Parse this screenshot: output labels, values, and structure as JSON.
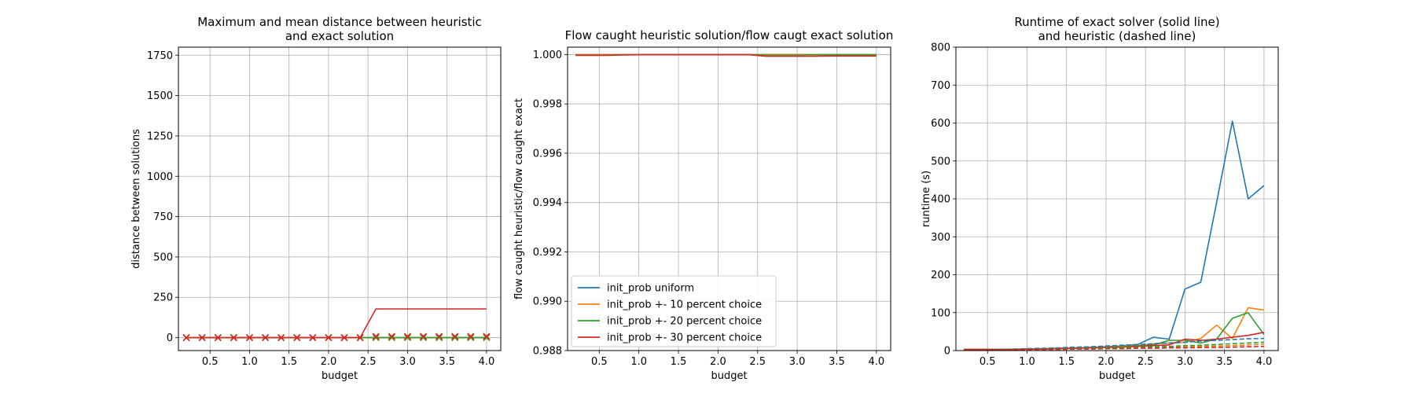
{
  "colors": {
    "uniform": "#1f77b4",
    "p10": "#ff7f0e",
    "p20": "#2ca02c",
    "p30": "#d62728",
    "grid": "#b0b0b0"
  },
  "legend_entries": [
    "init_prob uniform",
    "init_prob +- 10 percent choice",
    "init_prob +- 20 percent choice",
    "init_prob +- 30 percent choice"
  ],
  "chart_data": [
    {
      "type": "line",
      "title": "Maximum and mean distance between heuristic\nand exact solution",
      "xlabel": "budget",
      "ylabel": "distance between solutions",
      "xlim": [
        0.1,
        4.18
      ],
      "ylim": [
        -80,
        1800
      ],
      "xticks": [
        0.5,
        1.0,
        1.5,
        2.0,
        2.5,
        3.0,
        3.5,
        4.0
      ],
      "xtick_labels": [
        "0.5",
        "1.0",
        "1.5",
        "2.0",
        "2.5",
        "3.0",
        "3.5",
        "4.0"
      ],
      "yticks": [
        0,
        250,
        500,
        750,
        1000,
        1250,
        1500,
        1750
      ],
      "ytick_labels": [
        "0",
        "250",
        "500",
        "750",
        "1000",
        "1250",
        "1500",
        "1750"
      ],
      "grid": true,
      "x": [
        0.2,
        0.4,
        0.6,
        0.8,
        1.0,
        1.2,
        1.4,
        1.6,
        1.8,
        2.0,
        2.2,
        2.4,
        2.6,
        2.8,
        3.0,
        3.2,
        3.4,
        3.6,
        3.8,
        4.0
      ],
      "series": [
        {
          "key": "uniform",
          "kind": "line",
          "values": [
            0,
            0,
            0,
            0,
            0,
            0,
            0,
            0,
            0,
            0,
            0,
            0,
            0,
            0,
            0,
            0,
            0,
            0,
            0,
            0
          ]
        },
        {
          "key": "uniform",
          "kind": "x",
          "values": [
            0,
            0,
            0,
            0,
            0,
            0,
            0,
            0,
            0,
            0,
            0,
            0,
            0,
            0,
            0,
            0,
            0,
            0,
            0,
            0
          ]
        },
        {
          "key": "p10",
          "kind": "line",
          "values": [
            0,
            0,
            0,
            0,
            0,
            0,
            0,
            0,
            0,
            0,
            0,
            0,
            0,
            0,
            0,
            0,
            0,
            0,
            0,
            0
          ]
        },
        {
          "key": "p10",
          "kind": "x",
          "values": [
            0,
            0,
            0,
            0,
            0,
            0,
            0,
            0,
            0,
            0,
            0,
            0,
            0,
            0,
            0,
            0,
            0,
            0,
            0,
            0
          ]
        },
        {
          "key": "p20",
          "kind": "line",
          "values": [
            0,
            0,
            0,
            0,
            0,
            0,
            0,
            0,
            0,
            0,
            0,
            0,
            0,
            0,
            0,
            0,
            0,
            0,
            0,
            0
          ]
        },
        {
          "key": "p20",
          "kind": "x",
          "values": [
            0,
            0,
            0,
            0,
            0,
            0,
            0,
            0,
            0,
            0,
            0,
            0,
            2,
            2,
            2,
            2,
            2,
            2,
            2,
            2
          ]
        },
        {
          "key": "p30",
          "kind": "line",
          "values": [
            0,
            0,
            0,
            0,
            0,
            0,
            0,
            0,
            0,
            0,
            0,
            0,
            178,
            178,
            178,
            178,
            178,
            178,
            178,
            178
          ]
        },
        {
          "key": "p30",
          "kind": "x",
          "values": [
            0,
            0,
            0,
            0,
            0,
            0,
            0,
            0,
            0,
            0,
            0,
            0,
            8,
            8,
            8,
            8,
            8,
            8,
            8,
            8
          ]
        }
      ]
    },
    {
      "type": "line",
      "title": "Flow caught heuristic solution/flow caugt exact solution",
      "xlabel": "budget",
      "ylabel": "flow caught heuristic/flow caught exact",
      "xlim": [
        0.1,
        4.18
      ],
      "ylim": [
        0.988,
        1.0003
      ],
      "xticks": [
        0.5,
        1.0,
        1.5,
        2.0,
        2.5,
        3.0,
        3.5,
        4.0
      ],
      "xtick_labels": [
        "0.5",
        "1.0",
        "1.5",
        "2.0",
        "2.5",
        "3.0",
        "3.5",
        "4.0"
      ],
      "yticks": [
        0.988,
        0.99,
        0.992,
        0.994,
        0.996,
        0.998,
        1.0
      ],
      "ytick_labels": [
        "0.988",
        "0.990",
        "0.992",
        "0.994",
        "0.996",
        "0.998",
        "1.000"
      ],
      "grid": true,
      "legend_position": "lower-left",
      "x": [
        0.2,
        0.4,
        0.6,
        0.8,
        1.0,
        1.2,
        1.4,
        1.6,
        1.8,
        2.0,
        2.2,
        2.4,
        2.6,
        2.8,
        3.0,
        3.2,
        3.4,
        3.6,
        3.8,
        4.0
      ],
      "series": [
        {
          "key": "uniform",
          "kind": "line",
          "values": [
            1,
            1,
            1,
            1,
            1,
            1,
            1,
            1,
            1,
            1,
            1,
            1,
            1,
            1,
            1,
            1,
            1,
            1,
            1,
            1
          ]
        },
        {
          "key": "p10",
          "kind": "line",
          "values": [
            1,
            1,
            1,
            1,
            1,
            1,
            1,
            1,
            1,
            1,
            1,
            1,
            1,
            1,
            1,
            1,
            1,
            1,
            1,
            1
          ]
        },
        {
          "key": "p20",
          "kind": "line",
          "values": [
            0.99998,
            0.99998,
            0.99998,
            0.99999,
            1,
            1,
            1,
            1,
            1,
            1,
            1,
            1,
            0.99998,
            0.99998,
            0.99998,
            0.99999,
            0.99999,
            0.99999,
            0.99999,
            0.99999
          ]
        },
        {
          "key": "p30",
          "kind": "line",
          "values": [
            0.99997,
            0.99997,
            0.99997,
            0.99998,
            0.99999,
            0.99999,
            0.99999,
            0.99999,
            0.99999,
            0.99999,
            0.99999,
            0.99999,
            0.99993,
            0.99993,
            0.99993,
            0.99993,
            0.99994,
            0.99994,
            0.99994,
            0.99994
          ]
        }
      ]
    },
    {
      "type": "line",
      "title": "Runtime of exact solver (solid line)\nand heuristic (dashed line)",
      "xlabel": "budget",
      "ylabel": "runtime (s)",
      "xlim": [
        0.1,
        4.18
      ],
      "ylim": [
        0,
        800
      ],
      "xticks": [
        0.5,
        1.0,
        1.5,
        2.0,
        2.5,
        3.0,
        3.5,
        4.0
      ],
      "xtick_labels": [
        "0.5",
        "1.0",
        "1.5",
        "2.0",
        "2.5",
        "3.0",
        "3.5",
        "4.0"
      ],
      "yticks": [
        0,
        100,
        200,
        300,
        400,
        500,
        600,
        700,
        800
      ],
      "ytick_labels": [
        "0",
        "100",
        "200",
        "300",
        "400",
        "500",
        "600",
        "700",
        "800"
      ],
      "grid": true,
      "x": [
        0.2,
        0.4,
        0.6,
        0.8,
        1.0,
        1.2,
        1.4,
        1.6,
        1.8,
        2.0,
        2.2,
        2.4,
        2.6,
        2.8,
        3.0,
        3.2,
        3.4,
        3.6,
        3.8,
        4.0
      ],
      "series": [
        {
          "key": "uniform",
          "kind": "line",
          "values": [
            3,
            3,
            3,
            3,
            4,
            5,
            6,
            7,
            8,
            10,
            12,
            16,
            35,
            30,
            162,
            180,
            390,
            605,
            400,
            435
          ]
        },
        {
          "key": "p10",
          "kind": "line",
          "values": [
            3,
            3,
            3,
            3,
            4,
            5,
            6,
            7,
            8,
            9,
            11,
            13,
            18,
            20,
            22,
            32,
            67,
            32,
            113,
            107
          ]
        },
        {
          "key": "p20",
          "kind": "line",
          "values": [
            3,
            3,
            3,
            3,
            4,
            4,
            5,
            6,
            7,
            8,
            10,
            12,
            15,
            27,
            27,
            20,
            30,
            85,
            100,
            42
          ]
        },
        {
          "key": "p30",
          "kind": "line",
          "values": [
            3,
            3,
            3,
            3,
            4,
            4,
            5,
            6,
            7,
            8,
            9,
            11,
            13,
            15,
            30,
            27,
            30,
            35,
            40,
            48
          ]
        },
        {
          "key": "uniform",
          "kind": "dashed",
          "values": [
            2,
            2,
            3,
            4,
            5,
            6,
            7,
            9,
            10,
            12,
            14,
            16,
            18,
            20,
            22,
            25,
            27,
            29,
            31,
            32
          ]
        },
        {
          "key": "p10",
          "kind": "dashed",
          "values": [
            2,
            2,
            2,
            3,
            3,
            4,
            4,
            5,
            6,
            6,
            7,
            8,
            8,
            9,
            10,
            11,
            12,
            13,
            15,
            17
          ]
        },
        {
          "key": "p20",
          "kind": "dashed",
          "values": [
            2,
            2,
            2,
            3,
            3,
            4,
            4,
            5,
            6,
            7,
            8,
            9,
            10,
            11,
            13,
            14,
            16,
            18,
            20,
            22
          ]
        },
        {
          "key": "p30",
          "kind": "dashed",
          "values": [
            2,
            2,
            2,
            2,
            3,
            3,
            3,
            4,
            4,
            5,
            5,
            6,
            6,
            7,
            7,
            8,
            8,
            9,
            10,
            11
          ]
        }
      ]
    }
  ]
}
